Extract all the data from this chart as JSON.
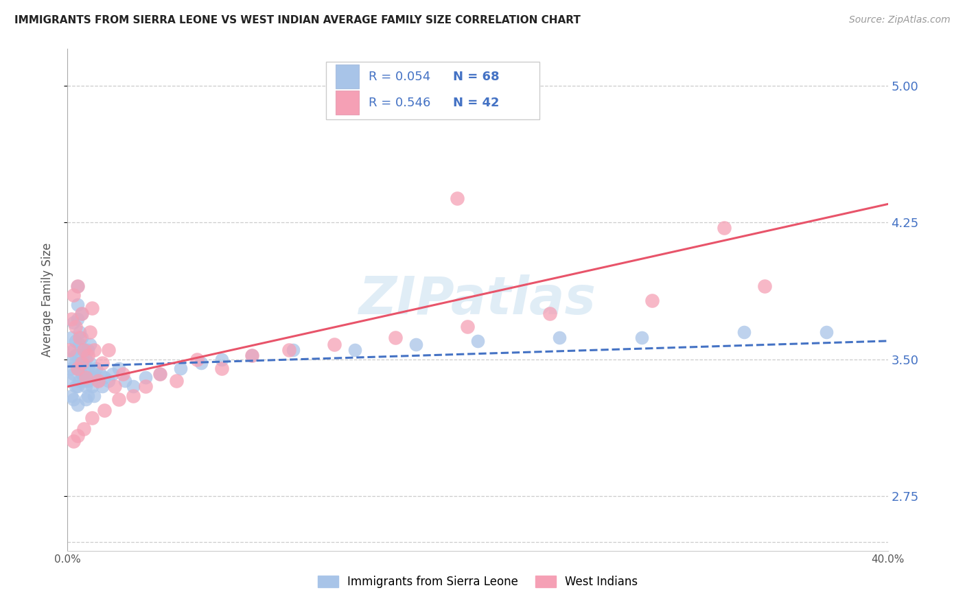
{
  "title": "IMMIGRANTS FROM SIERRA LEONE VS WEST INDIAN AVERAGE FAMILY SIZE CORRELATION CHART",
  "source": "Source: ZipAtlas.com",
  "ylabel": "Average Family Size",
  "yticks": [
    2.75,
    3.5,
    4.25,
    5.0
  ],
  "xlim": [
    0.0,
    0.4
  ],
  "ylim": [
    2.45,
    5.2
  ],
  "legend_labels": [
    "Immigrants from Sierra Leone",
    "West Indians"
  ],
  "legend_r1": "0.054",
  "legend_n1": "68",
  "legend_r2": "0.546",
  "legend_n2": "42",
  "blue_color": "#a8c4e8",
  "pink_color": "#f5a0b5",
  "blue_line_color": "#4472c4",
  "pink_line_color": "#e8546a",
  "right_tick_color": "#4472c4",
  "watermark": "ZIPatlas",
  "sierra_leone_x": [
    0.001,
    0.001,
    0.002,
    0.002,
    0.002,
    0.003,
    0.003,
    0.003,
    0.003,
    0.004,
    0.004,
    0.004,
    0.004,
    0.005,
    0.005,
    0.005,
    0.005,
    0.005,
    0.005,
    0.006,
    0.006,
    0.006,
    0.006,
    0.007,
    0.007,
    0.007,
    0.007,
    0.008,
    0.008,
    0.008,
    0.009,
    0.009,
    0.009,
    0.009,
    0.01,
    0.01,
    0.01,
    0.01,
    0.011,
    0.011,
    0.012,
    0.012,
    0.013,
    0.013,
    0.014,
    0.015,
    0.016,
    0.017,
    0.018,
    0.02,
    0.022,
    0.025,
    0.028,
    0.032,
    0.038,
    0.045,
    0.055,
    0.065,
    0.075,
    0.09,
    0.11,
    0.14,
    0.17,
    0.2,
    0.24,
    0.28,
    0.33,
    0.37
  ],
  "sierra_leone_y": [
    3.5,
    3.38,
    3.62,
    3.45,
    3.3,
    3.55,
    3.7,
    3.42,
    3.28,
    3.48,
    3.6,
    3.35,
    3.52,
    3.8,
    3.9,
    3.72,
    3.45,
    3.35,
    3.25,
    3.58,
    3.48,
    3.38,
    3.65,
    3.42,
    3.52,
    3.62,
    3.75,
    3.48,
    3.38,
    3.55,
    3.42,
    3.35,
    3.5,
    3.28,
    3.45,
    3.55,
    3.38,
    3.3,
    3.48,
    3.58,
    3.4,
    3.35,
    3.42,
    3.3,
    3.45,
    3.38,
    3.42,
    3.35,
    3.4,
    3.38,
    3.42,
    3.45,
    3.38,
    3.35,
    3.4,
    3.42,
    3.45,
    3.48,
    3.5,
    3.52,
    3.55,
    3.55,
    3.58,
    3.6,
    3.62,
    3.62,
    3.65,
    3.65
  ],
  "west_indians_x": [
    0.001,
    0.002,
    0.003,
    0.004,
    0.005,
    0.005,
    0.006,
    0.007,
    0.007,
    0.008,
    0.009,
    0.01,
    0.011,
    0.012,
    0.013,
    0.015,
    0.017,
    0.02,
    0.023,
    0.027,
    0.032,
    0.038,
    0.045,
    0.053,
    0.063,
    0.075,
    0.09,
    0.108,
    0.13,
    0.16,
    0.195,
    0.235,
    0.285,
    0.34,
    0.025,
    0.018,
    0.012,
    0.008,
    0.005,
    0.003,
    0.32,
    0.19
  ],
  "west_indians_y": [
    3.55,
    3.72,
    3.85,
    3.68,
    3.45,
    3.9,
    3.62,
    3.75,
    3.48,
    3.55,
    3.4,
    3.52,
    3.65,
    3.78,
    3.55,
    3.38,
    3.48,
    3.55,
    3.35,
    3.42,
    3.3,
    3.35,
    3.42,
    3.38,
    3.5,
    3.45,
    3.52,
    3.55,
    3.58,
    3.62,
    3.68,
    3.75,
    3.82,
    3.9,
    3.28,
    3.22,
    3.18,
    3.12,
    3.08,
    3.05,
    4.22,
    4.38
  ]
}
